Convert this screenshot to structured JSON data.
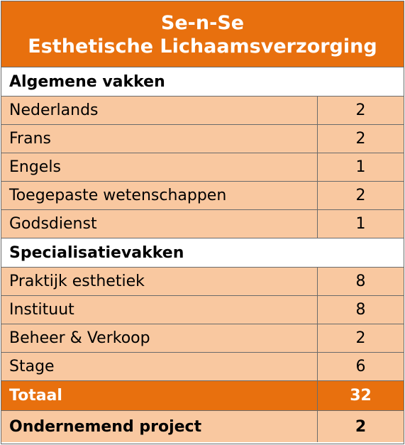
{
  "header": {
    "line1": "Se-n-Se",
    "line2": "Esthetische Lichaamsverzorging"
  },
  "sections": [
    {
      "title": "Algemene vakken",
      "rows": [
        {
          "name": "Nederlands",
          "value": "2"
        },
        {
          "name": "Frans",
          "value": "2"
        },
        {
          "name": "Engels",
          "value": "1"
        },
        {
          "name": "Toegepaste wetenschappen",
          "value": "2"
        },
        {
          "name": "Godsdienst",
          "value": "1"
        }
      ]
    },
    {
      "title": "Specialisatievakken",
      "rows": [
        {
          "name": "Praktijk esthetiek",
          "value": "8"
        },
        {
          "name": "Instituut",
          "value": "8"
        },
        {
          "name": "Beheer & Verkoop",
          "value": "2"
        },
        {
          "name": "Stage",
          "value": "6"
        }
      ]
    }
  ],
  "total": {
    "name": "Totaal",
    "value": "32"
  },
  "project": {
    "name": "Ondernemend project",
    "value": "2"
  },
  "colors": {
    "accent": "#e8700e",
    "row_bg": "#f9c8a0",
    "border": "#6b6b6b"
  }
}
